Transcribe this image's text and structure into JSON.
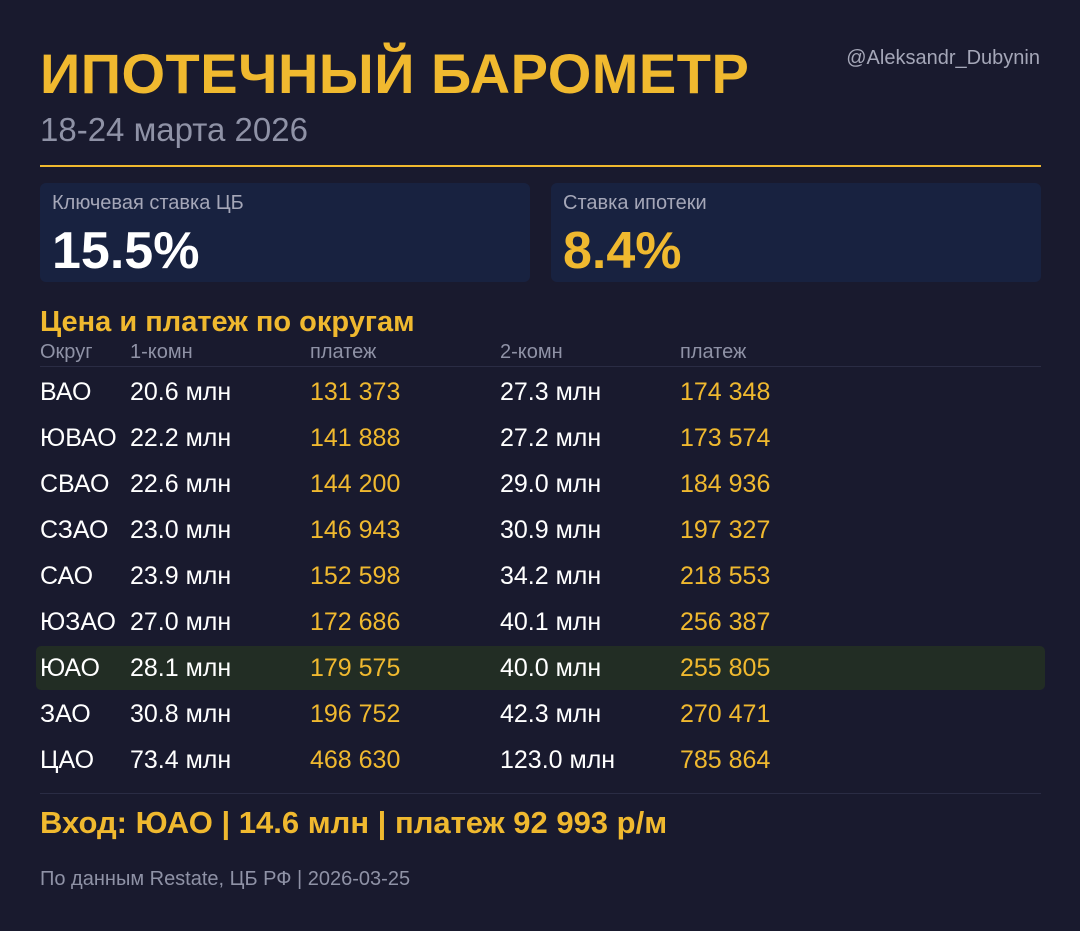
{
  "header": {
    "title": "ИПОТЕЧНЫЙ БАРОМЕТР",
    "subtitle": "18-24 марта 2026",
    "handle": "@Aleksandr_Dubynin"
  },
  "colors": {
    "accent": "#f0b92f",
    "background": "#191a2e",
    "card": "#182240",
    "highlight_row": "#222d24"
  },
  "cards": {
    "key_rate": {
      "label": "Ключевая ставка ЦБ",
      "value": "15.5%"
    },
    "mortgage_rate": {
      "label": "Ставка ипотеки",
      "value": "8.4%"
    }
  },
  "table": {
    "title": "Цена и платеж по округам",
    "headers": [
      "Округ",
      "1-комн",
      "платеж",
      "2-комн",
      "платеж"
    ],
    "highlighted_district": "ЮАО",
    "rows": [
      {
        "district": "ВАО",
        "price1": "20.6 млн",
        "pay1": "131 373",
        "price2": "27.3 млн",
        "pay2": "174 348"
      },
      {
        "district": "ЮВАО",
        "price1": "22.2 млн",
        "pay1": "141 888",
        "price2": "27.2 млн",
        "pay2": "173 574"
      },
      {
        "district": "СВАО",
        "price1": "22.6 млн",
        "pay1": "144 200",
        "price2": "29.0 млн",
        "pay2": "184 936"
      },
      {
        "district": "СЗАО",
        "price1": "23.0 млн",
        "pay1": "146 943",
        "price2": "30.9 млн",
        "pay2": "197 327"
      },
      {
        "district": "САО",
        "price1": "23.9 млн",
        "pay1": "152 598",
        "price2": "34.2 млн",
        "pay2": "218 553"
      },
      {
        "district": "ЮЗАО",
        "price1": "27.0 млн",
        "pay1": "172 686",
        "price2": "40.1 млн",
        "pay2": "256 387"
      },
      {
        "district": "ЮАО",
        "price1": "28.1 млн",
        "pay1": "179 575",
        "price2": "40.0 млн",
        "pay2": "255 805"
      },
      {
        "district": "ЗАО",
        "price1": "30.8 млн",
        "pay1": "196 752",
        "price2": "42.3 млн",
        "pay2": "270 471"
      },
      {
        "district": "ЦАО",
        "price1": "73.4 млн",
        "pay1": "468 630",
        "price2": "123.0 млн",
        "pay2": "785 864"
      }
    ]
  },
  "entry_line": "Вход: ЮАО  |  14.6 млн  |  платеж 92 993 р/м",
  "footer": "По данным Restate, ЦБ РФ  |  2026-03-25"
}
